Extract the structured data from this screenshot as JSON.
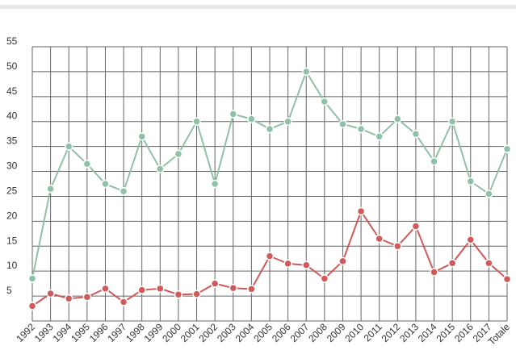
{
  "chart_data": {
    "type": "line",
    "title": "",
    "xlabel": "",
    "ylabel": "",
    "ylim": [
      0,
      55
    ],
    "yticks": [
      5,
      10,
      15,
      20,
      25,
      30,
      35,
      40,
      45,
      50,
      55
    ],
    "grid": true,
    "legend": "none",
    "categories": [
      "1992",
      "1993",
      "1994",
      "1995",
      "1996",
      "1997",
      "1998",
      "1999",
      "2000",
      "2001",
      "2002",
      "2003",
      "2004",
      "2005",
      "2006",
      "2007",
      "2008",
      "2009",
      "2010",
      "2011",
      "2012",
      "2013",
      "2014",
      "2015",
      "2016",
      "2017",
      "Totale"
    ],
    "series": [
      {
        "color": "#8fc1a6",
        "values": [
          8.5,
          26.5,
          35,
          31.5,
          27.5,
          26,
          37,
          30.5,
          33.5,
          40,
          27.5,
          41.5,
          40.5,
          38.5,
          40,
          50,
          44,
          39.5,
          38.5,
          37,
          40.5,
          37.5,
          32,
          40,
          28,
          25.5,
          34.5
        ]
      },
      {
        "color": "#d05a5a",
        "values": [
          3,
          5.5,
          4.5,
          4.8,
          6.5,
          3.8,
          6.2,
          6.5,
          5.3,
          5.4,
          7.5,
          6.6,
          6.4,
          13,
          11.5,
          11.2,
          8.5,
          12,
          22,
          16.5,
          15,
          19,
          9.8,
          11.6,
          16.3,
          11.6,
          8.4
        ]
      }
    ]
  }
}
